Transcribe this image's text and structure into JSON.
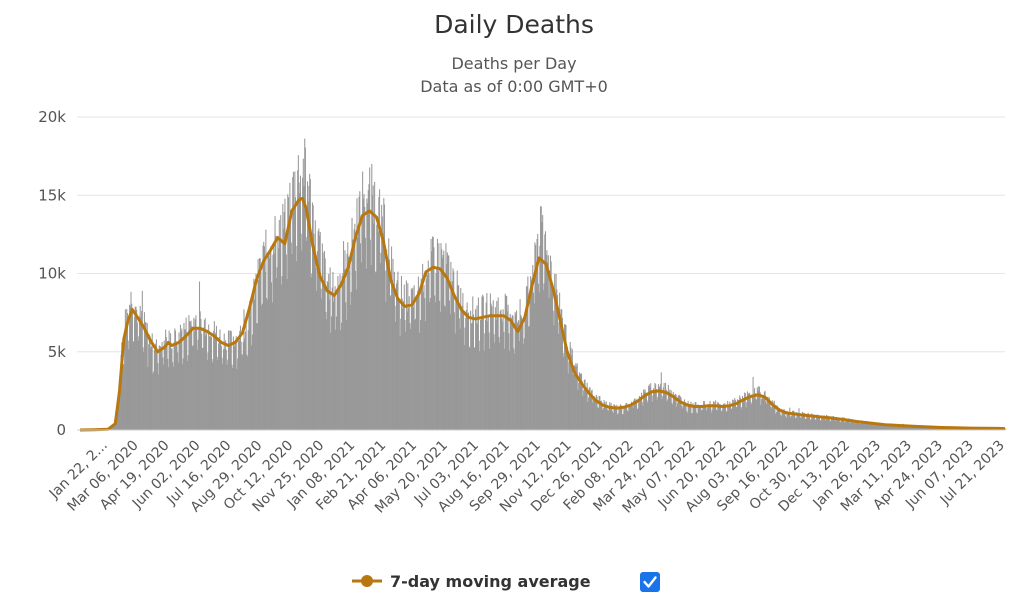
{
  "chart_data": {
    "type": "bar",
    "title": "Daily Deaths",
    "subtitles": [
      "Deaths per Day",
      "Data as of 0:00 GMT+0"
    ],
    "y_ticks": [
      "0",
      "5k",
      "10k",
      "15k",
      "20k"
    ],
    "y_tick_values": [
      0,
      5000,
      10000,
      15000,
      20000
    ],
    "ylim": [
      0,
      20000
    ],
    "x_labels": [
      "Jan 22, 2...",
      "Mar 06, 2020",
      "Apr 19, 2020",
      "Jun 02, 2020",
      "Jul 16, 2020",
      "Aug 29, 2020",
      "Oct 12, 2020",
      "Nov 25, 2020",
      "Jan 08, 2021",
      "Feb 21, 2021",
      "Apr 06, 2021",
      "May 20, 2021",
      "Jul 03, 2021",
      "Aug 16, 2021",
      "Sep 29, 2021",
      "Nov 12, 2021",
      "Dec 26, 2021",
      "Feb 08, 2022",
      "Mar 24, 2022",
      "May 07, 2022",
      "Jun 20, 2022",
      "Aug 03, 2022",
      "Sep 16, 2022",
      "Oct 30, 2022",
      "Dec 13, 2022",
      "Jan 26, 2023",
      "Mar 11, 2023",
      "Apr 24, 2023",
      "Jun 07, 2023",
      "Jul 21, 2023"
    ],
    "x_range_days": [
      0,
      1310
    ],
    "series": [
      {
        "name": "Daily Deaths",
        "kind": "bar",
        "color": "#999999",
        "anchor_points": [
          [
            0,
            0
          ],
          [
            30,
            50
          ],
          [
            44,
            80
          ],
          [
            52,
            1000
          ],
          [
            58,
            4500
          ],
          [
            64,
            6800
          ],
          [
            74,
            8200
          ],
          [
            80,
            7200
          ],
          [
            90,
            6500
          ],
          [
            100,
            5300
          ],
          [
            110,
            5000
          ],
          [
            120,
            5600
          ],
          [
            130,
            5400
          ],
          [
            140,
            5800
          ],
          [
            150,
            6200
          ],
          [
            160,
            6800
          ],
          [
            170,
            6600
          ],
          [
            180,
            6400
          ],
          [
            190,
            6000
          ],
          [
            200,
            5600
          ],
          [
            210,
            5400
          ],
          [
            220,
            5600
          ],
          [
            230,
            5900
          ],
          [
            240,
            7000
          ],
          [
            250,
            9000
          ],
          [
            260,
            10500
          ],
          [
            270,
            11500
          ],
          [
            280,
            12200
          ],
          [
            290,
            12500
          ],
          [
            300,
            14500
          ],
          [
            310,
            15700
          ],
          [
            320,
            15800
          ],
          [
            330,
            13000
          ],
          [
            340,
            11000
          ],
          [
            350,
            9000
          ],
          [
            360,
            8500
          ],
          [
            370,
            9300
          ],
          [
            380,
            10400
          ],
          [
            390,
            12600
          ],
          [
            400,
            14300
          ],
          [
            410,
            14600
          ],
          [
            420,
            13800
          ],
          [
            430,
            12500
          ],
          [
            440,
            10200
          ],
          [
            450,
            8700
          ],
          [
            460,
            8100
          ],
          [
            470,
            8000
          ],
          [
            480,
            8500
          ],
          [
            490,
            10000
          ],
          [
            500,
            10500
          ],
          [
            510,
            10600
          ],
          [
            520,
            10000
          ],
          [
            530,
            9000
          ],
          [
            540,
            8000
          ],
          [
            550,
            7400
          ],
          [
            560,
            7100
          ],
          [
            570,
            7300
          ],
          [
            580,
            7500
          ],
          [
            590,
            7400
          ],
          [
            600,
            7400
          ],
          [
            610,
            7200
          ],
          [
            620,
            6600
          ],
          [
            630,
            7500
          ],
          [
            640,
            9500
          ],
          [
            650,
            12300
          ],
          [
            660,
            11500
          ],
          [
            670,
            9500
          ],
          [
            680,
            7500
          ],
          [
            690,
            5300
          ],
          [
            700,
            4000
          ],
          [
            710,
            3200
          ],
          [
            720,
            2500
          ],
          [
            730,
            2100
          ],
          [
            740,
            1700
          ],
          [
            750,
            1500
          ],
          [
            760,
            1400
          ],
          [
            770,
            1400
          ],
          [
            780,
            1600
          ],
          [
            790,
            1900
          ],
          [
            800,
            2300
          ],
          [
            810,
            2600
          ],
          [
            820,
            2700
          ],
          [
            830,
            2600
          ],
          [
            840,
            2300
          ],
          [
            850,
            1900
          ],
          [
            860,
            1600
          ],
          [
            870,
            1500
          ],
          [
            880,
            1550
          ],
          [
            890,
            1600
          ],
          [
            900,
            1600
          ],
          [
            910,
            1500
          ],
          [
            920,
            1600
          ],
          [
            930,
            1800
          ],
          [
            940,
            2000
          ],
          [
            950,
            2300
          ],
          [
            960,
            2400
          ],
          [
            970,
            2200
          ],
          [
            980,
            1700
          ],
          [
            990,
            1300
          ],
          [
            1000,
            1100
          ],
          [
            1020,
            1000
          ],
          [
            1040,
            900
          ],
          [
            1060,
            800
          ],
          [
            1080,
            700
          ],
          [
            1100,
            550
          ],
          [
            1120,
            450
          ],
          [
            1140,
            350
          ],
          [
            1160,
            300
          ],
          [
            1180,
            250
          ],
          [
            1200,
            200
          ],
          [
            1220,
            150
          ],
          [
            1240,
            130
          ],
          [
            1260,
            120
          ],
          [
            1280,
            110
          ],
          [
            1300,
            100
          ],
          [
            1310,
            90
          ]
        ]
      },
      {
        "name": "7-day moving average",
        "kind": "line",
        "color": "#B8770F",
        "points": [
          [
            0,
            0
          ],
          [
            20,
            20
          ],
          [
            40,
            50
          ],
          [
            50,
            400
          ],
          [
            56,
            2500
          ],
          [
            62,
            5800
          ],
          [
            68,
            7000
          ],
          [
            74,
            7700
          ],
          [
            80,
            7300
          ],
          [
            90,
            6600
          ],
          [
            100,
            5700
          ],
          [
            110,
            5000
          ],
          [
            120,
            5300
          ],
          [
            125,
            5600
          ],
          [
            130,
            5400
          ],
          [
            140,
            5600
          ],
          [
            150,
            6000
          ],
          [
            160,
            6500
          ],
          [
            170,
            6500
          ],
          [
            180,
            6300
          ],
          [
            190,
            6000
          ],
          [
            200,
            5600
          ],
          [
            210,
            5400
          ],
          [
            220,
            5600
          ],
          [
            230,
            6200
          ],
          [
            240,
            7800
          ],
          [
            250,
            9600
          ],
          [
            260,
            10800
          ],
          [
            270,
            11500
          ],
          [
            280,
            12300
          ],
          [
            290,
            11900
          ],
          [
            300,
            14000
          ],
          [
            310,
            14700
          ],
          [
            315,
            14800
          ],
          [
            320,
            14200
          ],
          [
            330,
            11700
          ],
          [
            340,
            9800
          ],
          [
            350,
            8900
          ],
          [
            360,
            8600
          ],
          [
            370,
            9300
          ],
          [
            380,
            10400
          ],
          [
            390,
            12300
          ],
          [
            400,
            13700
          ],
          [
            410,
            14000
          ],
          [
            420,
            13600
          ],
          [
            430,
            12000
          ],
          [
            440,
            9600
          ],
          [
            450,
            8400
          ],
          [
            460,
            7900
          ],
          [
            470,
            8000
          ],
          [
            480,
            8700
          ],
          [
            490,
            10100
          ],
          [
            500,
            10400
          ],
          [
            510,
            10300
          ],
          [
            520,
            9700
          ],
          [
            530,
            8600
          ],
          [
            540,
            7700
          ],
          [
            550,
            7200
          ],
          [
            560,
            7100
          ],
          [
            570,
            7200
          ],
          [
            580,
            7300
          ],
          [
            590,
            7300
          ],
          [
            600,
            7300
          ],
          [
            610,
            7000
          ],
          [
            620,
            6300
          ],
          [
            630,
            7200
          ],
          [
            640,
            9200
          ],
          [
            650,
            11000
          ],
          [
            660,
            10600
          ],
          [
            670,
            9000
          ],
          [
            680,
            7000
          ],
          [
            690,
            5000
          ],
          [
            700,
            3700
          ],
          [
            710,
            3000
          ],
          [
            720,
            2400
          ],
          [
            730,
            1900
          ],
          [
            740,
            1600
          ],
          [
            750,
            1450
          ],
          [
            760,
            1400
          ],
          [
            770,
            1450
          ],
          [
            780,
            1600
          ],
          [
            790,
            1850
          ],
          [
            800,
            2200
          ],
          [
            810,
            2450
          ],
          [
            820,
            2500
          ],
          [
            830,
            2400
          ],
          [
            840,
            2150
          ],
          [
            850,
            1800
          ],
          [
            860,
            1600
          ],
          [
            870,
            1500
          ],
          [
            880,
            1500
          ],
          [
            890,
            1550
          ],
          [
            900,
            1550
          ],
          [
            910,
            1500
          ],
          [
            920,
            1550
          ],
          [
            930,
            1700
          ],
          [
            940,
            1950
          ],
          [
            950,
            2150
          ],
          [
            960,
            2250
          ],
          [
            970,
            2100
          ],
          [
            980,
            1650
          ],
          [
            990,
            1300
          ],
          [
            1000,
            1100
          ],
          [
            1020,
            980
          ],
          [
            1040,
            880
          ],
          [
            1060,
            780
          ],
          [
            1080,
            680
          ],
          [
            1100,
            540
          ],
          [
            1120,
            440
          ],
          [
            1140,
            340
          ],
          [
            1160,
            290
          ],
          [
            1180,
            240
          ],
          [
            1200,
            200
          ],
          [
            1220,
            160
          ],
          [
            1240,
            140
          ],
          [
            1260,
            120
          ],
          [
            1280,
            110
          ],
          [
            1300,
            100
          ],
          [
            1310,
            90
          ]
        ]
      }
    ],
    "legend": {
      "label": "7-day moving average",
      "checked": true,
      "marker_color": "#B8770F",
      "checkbox_color": "#1A73E8"
    },
    "grid": true
  }
}
